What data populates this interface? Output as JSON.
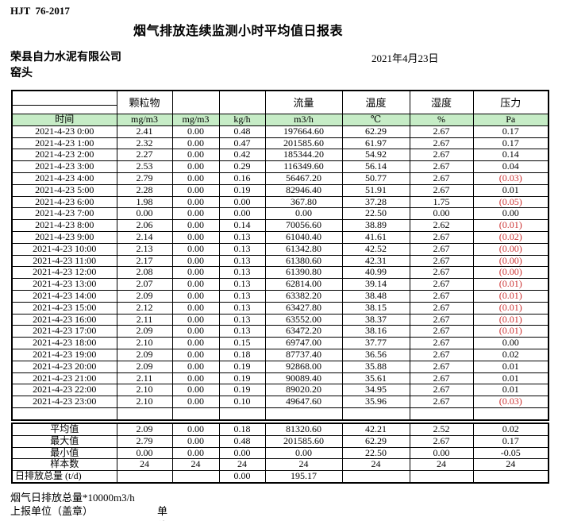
{
  "header": {
    "doc_code": "HJT  76-2017",
    "title": "烟气排放连续监测小时平均值日报表",
    "company": "荣县自力水泥有限公司",
    "station": "窑头",
    "date": "2021年4月23日"
  },
  "colors": {
    "header_green": "#c6ecc6",
    "negative_red": "#cc3333",
    "border": "#000000"
  },
  "table": {
    "groups": [
      "颗粒物",
      "",
      "",
      "流量",
      "温度",
      "湿度",
      "压力"
    ],
    "units": [
      "时间",
      "mg/m3",
      "mg/m3",
      "kg/h",
      "m3/h",
      "℃",
      "%",
      "Pa"
    ],
    "rows": [
      {
        "time": "2021-4-23 0:00",
        "cells": [
          "2.41",
          "0.00",
          "0.48",
          "197664.60",
          "62.29",
          "2.67",
          "0.17"
        ]
      },
      {
        "time": "2021-4-23 1:00",
        "cells": [
          "2.32",
          "0.00",
          "0.47",
          "201585.60",
          "61.97",
          "2.67",
          "0.17"
        ]
      },
      {
        "time": "2021-4-23 2:00",
        "cells": [
          "2.27",
          "0.00",
          "0.42",
          "185344.20",
          "54.92",
          "2.67",
          "0.14"
        ]
      },
      {
        "time": "2021-4-23 3:00",
        "cells": [
          "2.53",
          "0.00",
          "0.29",
          "116349.60",
          "56.14",
          "2.67",
          "0.04"
        ]
      },
      {
        "time": "2021-4-23 4:00",
        "cells": [
          "2.79",
          "0.00",
          "0.16",
          "56467.20",
          "50.77",
          "2.67",
          "(0.03)"
        ]
      },
      {
        "time": "2021-4-23 5:00",
        "cells": [
          "2.28",
          "0.00",
          "0.19",
          "82946.40",
          "51.91",
          "2.67",
          "0.01"
        ]
      },
      {
        "time": "2021-4-23 6:00",
        "cells": [
          "1.98",
          "0.00",
          "0.00",
          "367.80",
          "37.28",
          "1.75",
          "(0.05)"
        ]
      },
      {
        "time": "2021-4-23 7:00",
        "cells": [
          "0.00",
          "0.00",
          "0.00",
          "0.00",
          "22.50",
          "0.00",
          "0.00"
        ]
      },
      {
        "time": "2021-4-23 8:00",
        "cells": [
          "2.06",
          "0.00",
          "0.14",
          "70056.60",
          "38.89",
          "2.62",
          "(0.01)"
        ]
      },
      {
        "time": "2021-4-23 9:00",
        "cells": [
          "2.14",
          "0.00",
          "0.13",
          "61040.40",
          "41.61",
          "2.67",
          "(0.02)"
        ]
      },
      {
        "time": "2021-4-23 10:00",
        "cells": [
          "2.13",
          "0.00",
          "0.13",
          "61342.80",
          "42.52",
          "2.67",
          "(0.00)"
        ]
      },
      {
        "time": "2021-4-23 11:00",
        "cells": [
          "2.17",
          "0.00",
          "0.13",
          "61380.60",
          "42.31",
          "2.67",
          "(0.00)"
        ]
      },
      {
        "time": "2021-4-23 12:00",
        "cells": [
          "2.08",
          "0.00",
          "0.13",
          "61390.80",
          "40.99",
          "2.67",
          "(0.00)"
        ]
      },
      {
        "time": "2021-4-23 13:00",
        "cells": [
          "2.07",
          "0.00",
          "0.13",
          "62814.00",
          "39.14",
          "2.67",
          "(0.01)"
        ]
      },
      {
        "time": "2021-4-23 14:00",
        "cells": [
          "2.09",
          "0.00",
          "0.13",
          "63382.20",
          "38.48",
          "2.67",
          "(0.01)"
        ]
      },
      {
        "time": "2021-4-23 15:00",
        "cells": [
          "2.12",
          "0.00",
          "0.13",
          "63427.80",
          "38.15",
          "2.67",
          "(0.01)"
        ]
      },
      {
        "time": "2021-4-23 16:00",
        "cells": [
          "2.11",
          "0.00",
          "0.13",
          "63552.00",
          "38.37",
          "2.67",
          "(0.01)"
        ]
      },
      {
        "time": "2021-4-23 17:00",
        "cells": [
          "2.09",
          "0.00",
          "0.13",
          "63472.20",
          "38.16",
          "2.67",
          "(0.01)"
        ]
      },
      {
        "time": "2021-4-23 18:00",
        "cells": [
          "2.10",
          "0.00",
          "0.15",
          "69747.00",
          "37.77",
          "2.67",
          "0.00"
        ]
      },
      {
        "time": "2021-4-23 19:00",
        "cells": [
          "2.09",
          "0.00",
          "0.18",
          "87737.40",
          "36.56",
          "2.67",
          "0.02"
        ]
      },
      {
        "time": "2021-4-23 20:00",
        "cells": [
          "2.09",
          "0.00",
          "0.19",
          "92868.00",
          "35.88",
          "2.67",
          "0.01"
        ]
      },
      {
        "time": "2021-4-23 21:00",
        "cells": [
          "2.11",
          "0.00",
          "0.19",
          "90089.40",
          "35.61",
          "2.67",
          "0.01"
        ]
      },
      {
        "time": "2021-4-23 22:00",
        "cells": [
          "2.10",
          "0.00",
          "0.19",
          "89020.20",
          "34.95",
          "2.67",
          "0.01"
        ]
      },
      {
        "time": "2021-4-23 23:00",
        "cells": [
          "2.10",
          "0.00",
          "0.10",
          "49647.60",
          "35.96",
          "2.67",
          "(0.03)"
        ]
      }
    ]
  },
  "summary": {
    "rows": [
      {
        "label": "平均值",
        "cells": [
          "2.09",
          "0.00",
          "0.18",
          "81320.60",
          "42.21",
          "2.52",
          "0.02"
        ]
      },
      {
        "label": "最大值",
        "cells": [
          "2.79",
          "0.00",
          "0.48",
          "201585.60",
          "62.29",
          "2.67",
          "0.17"
        ]
      },
      {
        "label": "最小值",
        "cells": [
          "0.00",
          "0.00",
          "0.00",
          "0.00",
          "22.50",
          "0.00",
          "-0.05"
        ]
      },
      {
        "label": "样本数",
        "cells": [
          "24",
          "24",
          "24",
          "24",
          "24",
          "24",
          "24"
        ]
      },
      {
        "label": "日排放总量 (t/d)",
        "cells": [
          "",
          "",
          "0.00",
          "195.17",
          "",
          "",
          ""
        ],
        "label_align": "left"
      }
    ]
  },
  "footer": {
    "note": "烟气日排放总量*10000m3/h",
    "report_unit": "上报单位（盖章）",
    "unit": "单位"
  }
}
